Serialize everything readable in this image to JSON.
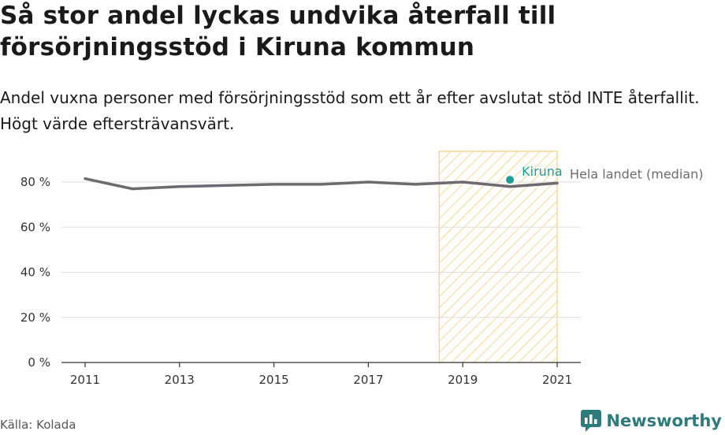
{
  "title": "Så stor andel lyckas undvika återfall till försörjningsstöd i Kiruna kommun",
  "subtitle": "Andel vuxna personer med försörjningsstöd som ett år efter avslutat stöd INTE återfallit. Högt värde eftersträvansvärt.",
  "source": "Källa: Kolada",
  "brand": {
    "name": "Newsworthy",
    "icon": "newsworthy-logo-icon",
    "color": "#2f7b7b"
  },
  "chart_data": {
    "type": "line",
    "x_ticks": [
      "2011",
      "2013",
      "2015",
      "2017",
      "2019",
      "2021"
    ],
    "y_ticks": [
      "0 %",
      "20 %",
      "40 %",
      "60 %",
      "80 %"
    ],
    "xlim": [
      2011,
      2021
    ],
    "ylim": [
      0,
      80
    ],
    "grid": true,
    "highlight_range": [
      2018.5,
      2021
    ],
    "series": [
      {
        "name": "Hela landet (median)",
        "color": "#6b6b70",
        "x": [
          2011,
          2012,
          2013,
          2014,
          2015,
          2016,
          2017,
          2018,
          2019,
          2020,
          2021
        ],
        "y": [
          81.5,
          77,
          78,
          78.5,
          79,
          79,
          80,
          79,
          80,
          78,
          79.5
        ]
      },
      {
        "name": "Kiruna",
        "color": "#1a9e96",
        "x": [
          2020
        ],
        "y": [
          81
        ]
      }
    ]
  }
}
